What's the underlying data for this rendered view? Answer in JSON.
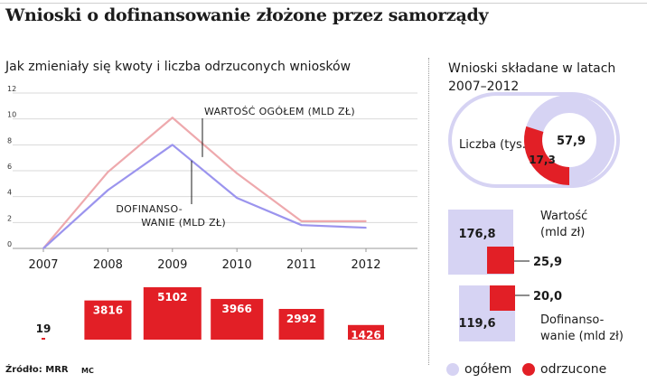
{
  "title": "Wnioski o dofinansowanie złożone przez samorządy",
  "left_subtitle": "Jak zmieniały się kwoty i liczba odrzuconych wniosków",
  "right_subtitle_line1": "Wnioski składane w latach",
  "right_subtitle_line2": "2007–2012",
  "source": "Źródło: MRR",
  "author": "MC",
  "colors": {
    "total": "#eea9ad",
    "cofin": "#9b94ee",
    "rejected": "#e21f26",
    "total_fill": "#d6d3f3"
  },
  "chart_data": [
    {
      "type": "line",
      "categories": [
        "2007",
        "2008",
        "2009",
        "2010",
        "2011",
        "2012"
      ],
      "y_ticks": [
        "0",
        "2",
        "4",
        "6",
        "8",
        "10",
        "12"
      ],
      "ylim": [
        0,
        12
      ],
      "grid": true,
      "series": [
        {
          "name": "WARTOŚĆ OGÓŁEM (MLD ZŁ)",
          "values": [
            0,
            5.9,
            10.1,
            5.8,
            2.1,
            2.1
          ]
        },
        {
          "name_line1": "DOFINANSO-",
          "name_line2": "WANIE (MLD ZŁ)",
          "values": [
            0,
            4.5,
            8.0,
            3.9,
            1.8,
            1.6
          ]
        }
      ]
    },
    {
      "type": "bar",
      "categories": [
        "2007",
        "2008",
        "2009",
        "2010",
        "2011",
        "2012"
      ],
      "values": [
        19,
        3816,
        5102,
        3966,
        2992,
        1426
      ],
      "labels": [
        "19",
        "3816",
        "5102",
        "3966",
        "2992",
        "1426"
      ]
    },
    {
      "type": "pie",
      "label": "Liczba (tys.)",
      "slices": [
        {
          "name": "ogółem",
          "value": 57.9,
          "label": "57,9"
        },
        {
          "name": "odrzucone",
          "value": 17.3,
          "label": "17,3"
        }
      ]
    },
    {
      "type": "bar",
      "label_line1": "Wartość",
      "label_line2": "(mld zł)",
      "values": [
        {
          "name": "ogółem",
          "value": 176.8,
          "label": "176,8"
        },
        {
          "name": "odrzucone",
          "value": 25.9,
          "label": "25,9"
        }
      ]
    },
    {
      "type": "bar",
      "label_line1": "Dofinanso-",
      "label_line2": "wanie (mld zł)",
      "values": [
        {
          "name": "ogółem",
          "value": 119.6,
          "label": "119,6"
        },
        {
          "name": "odrzucone",
          "value": 20.0,
          "label": "20,0"
        }
      ]
    }
  ],
  "legend": [
    {
      "label": "ogółem",
      "color": "#d6d3f3"
    },
    {
      "label": "odrzucone",
      "color": "#e21f26"
    }
  ]
}
